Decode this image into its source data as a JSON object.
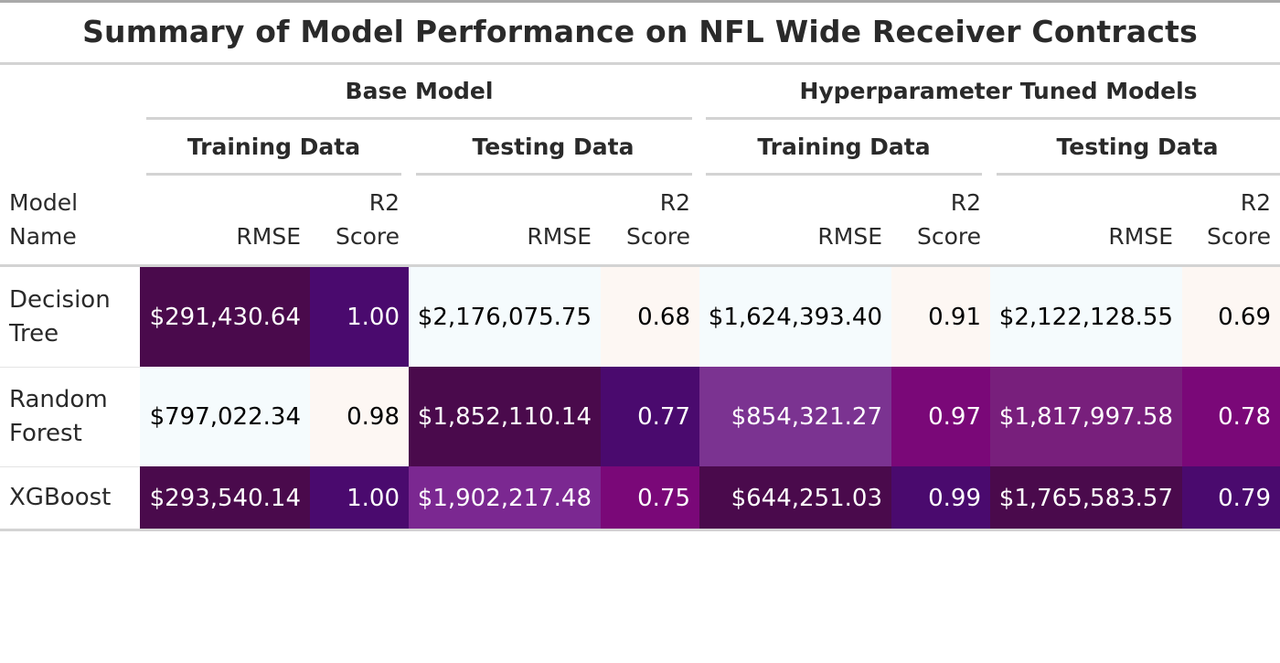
{
  "chart_data": {
    "type": "table",
    "title": "Summary of Model Performance on NFL Wide Receiver Contracts",
    "groups": [
      "Base Model",
      "Hyperparameter Tuned Models"
    ],
    "subgroups": [
      "Training Data",
      "Testing Data",
      "Training Data",
      "Testing Data"
    ],
    "stub_header_line1": "Model",
    "stub_header_line2": "Name",
    "rmse_label": "RMSE",
    "r2_label_line1": "R2",
    "r2_label_line2": "Score",
    "rows": [
      {
        "name_line1": "Decision",
        "name_line2": "Tree",
        "cells": [
          {
            "text": "$291,430.64",
            "bg": "#4a0a4c",
            "fg": "#ffffff"
          },
          {
            "text": "1.00",
            "bg": "#4a0a6e",
            "fg": "#ffffff"
          },
          {
            "text": "$2,176,075.75",
            "bg": "#f5fbfd",
            "fg": "#000000"
          },
          {
            "text": "0.68",
            "bg": "#fdf7f3",
            "fg": "#000000"
          },
          {
            "text": "$1,624,393.40",
            "bg": "#f5fbfd",
            "fg": "#000000"
          },
          {
            "text": "0.91",
            "bg": "#fdf7f3",
            "fg": "#000000"
          },
          {
            "text": "$2,122,128.55",
            "bg": "#f5fbfd",
            "fg": "#000000"
          },
          {
            "text": "0.69",
            "bg": "#fdf7f3",
            "fg": "#000000"
          }
        ]
      },
      {
        "name_line1": "Random",
        "name_line2": "Forest",
        "cells": [
          {
            "text": "$797,022.34",
            "bg": "#f5fbfd",
            "fg": "#000000"
          },
          {
            "text": "0.98",
            "bg": "#fdf7f3",
            "fg": "#000000"
          },
          {
            "text": "$1,852,110.14",
            "bg": "#4a0a4c",
            "fg": "#ffffff"
          },
          {
            "text": "0.77",
            "bg": "#4a0a6e",
            "fg": "#ffffff"
          },
          {
            "text": "$854,321.27",
            "bg": "#7b3391",
            "fg": "#ffffff"
          },
          {
            "text": "0.97",
            "bg": "#7a0878",
            "fg": "#ffffff"
          },
          {
            "text": "$1,817,997.58",
            "bg": "#781f7c",
            "fg": "#ffffff"
          },
          {
            "text": "0.78",
            "bg": "#7a0878",
            "fg": "#ffffff"
          }
        ]
      },
      {
        "name_line1": "XGBoost",
        "name_line2": "",
        "cells": [
          {
            "text": "$293,540.14",
            "bg": "#4a0a4c",
            "fg": "#ffffff"
          },
          {
            "text": "1.00",
            "bg": "#4a0a6e",
            "fg": "#ffffff"
          },
          {
            "text": "$1,902,217.48",
            "bg": "#7b2891",
            "fg": "#ffffff"
          },
          {
            "text": "0.75",
            "bg": "#7a0878",
            "fg": "#ffffff"
          },
          {
            "text": "$644,251.03",
            "bg": "#4a0a4c",
            "fg": "#ffffff"
          },
          {
            "text": "0.99",
            "bg": "#4a0a6e",
            "fg": "#ffffff"
          },
          {
            "text": "$1,765,583.57",
            "bg": "#4a0a4c",
            "fg": "#ffffff"
          },
          {
            "text": "0.79",
            "bg": "#4a0a6e",
            "fg": "#ffffff"
          }
        ]
      }
    ]
  }
}
